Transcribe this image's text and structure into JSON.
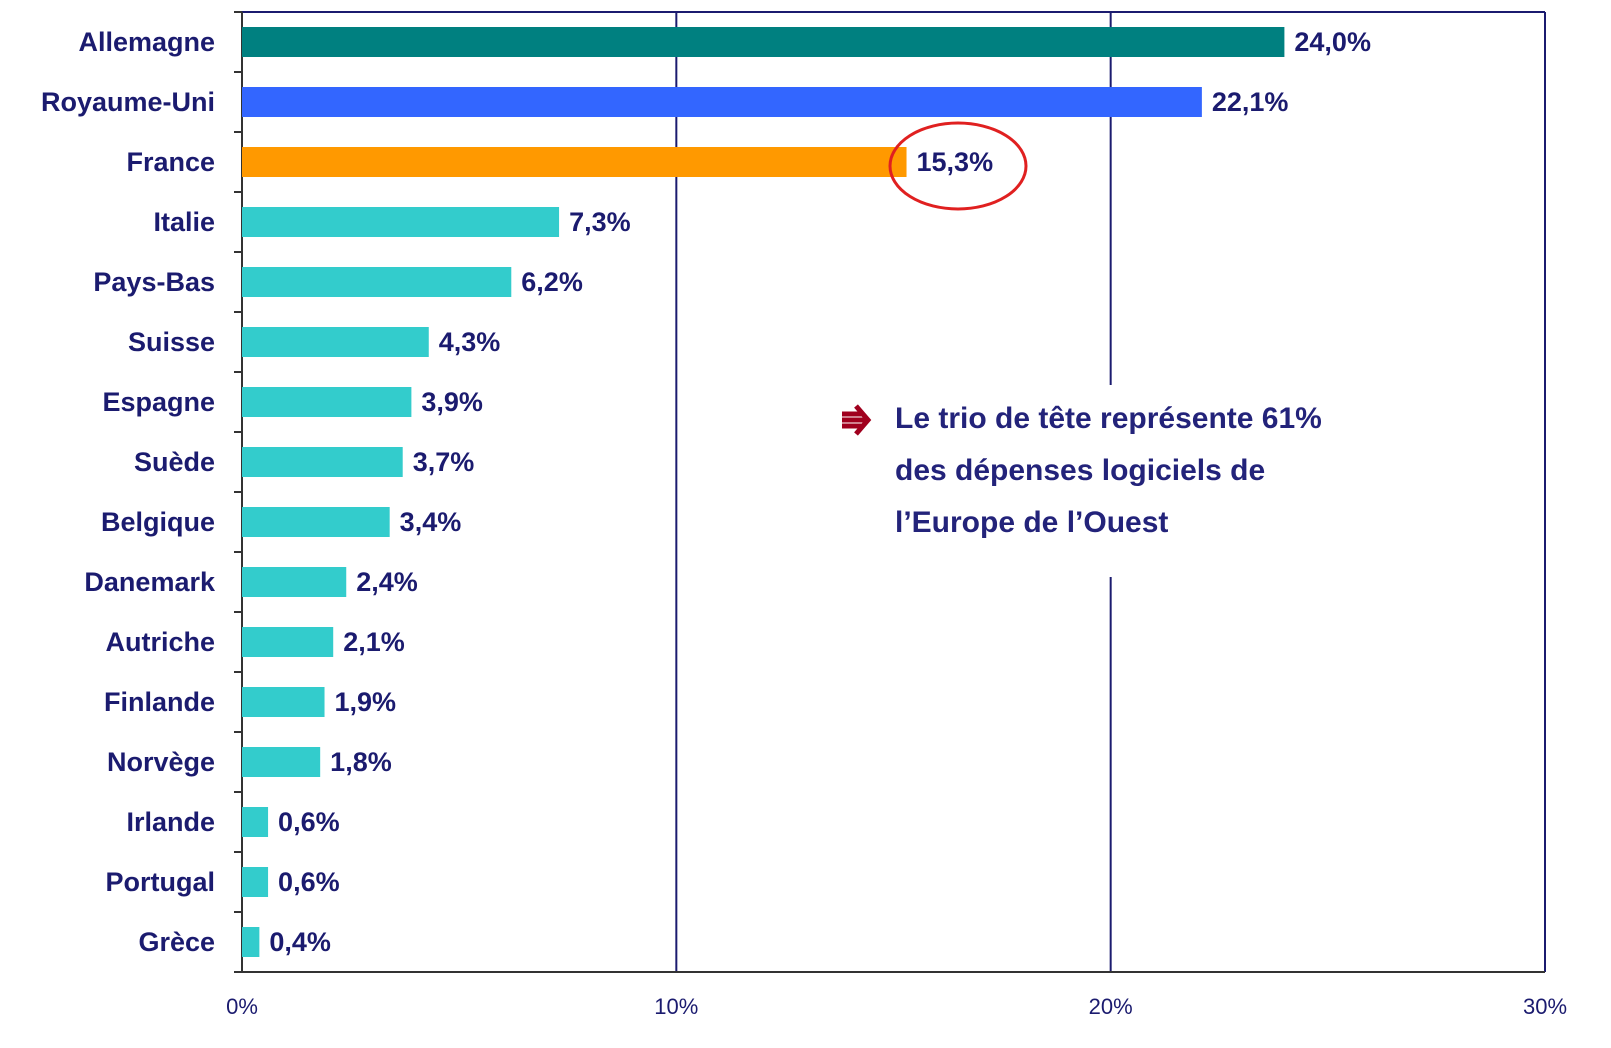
{
  "chart_data": {
    "type": "bar",
    "orientation": "horizontal",
    "categories": [
      "Allemagne",
      "Royaume-Uni",
      "France",
      "Italie",
      "Pays-Bas",
      "Suisse",
      "Espagne",
      "Suède",
      "Belgique",
      "Danemark",
      "Autriche",
      "Finlande",
      "Norvège",
      "Irlande",
      "Portugal",
      "Grèce"
    ],
    "values": [
      24.0,
      22.1,
      15.3,
      7.3,
      6.2,
      4.3,
      3.9,
      3.7,
      3.4,
      2.4,
      2.1,
      1.9,
      1.8,
      0.6,
      0.6,
      0.4
    ],
    "value_labels": [
      "24,0%",
      "22,1%",
      "15,3%",
      "7,3%",
      "6,2%",
      "4,3%",
      "3,9%",
      "3,7%",
      "3,4%",
      "2,4%",
      "2,1%",
      "1,9%",
      "1,8%",
      "0,6%",
      "0,6%",
      "0,4%"
    ],
    "colors": [
      "#008080",
      "#3366ff",
      "#ff9900",
      "#33cccc",
      "#33cccc",
      "#33cccc",
      "#33cccc",
      "#33cccc",
      "#33cccc",
      "#33cccc",
      "#33cccc",
      "#33cccc",
      "#33cccc",
      "#33cccc",
      "#33cccc",
      "#33cccc"
    ],
    "xlim": [
      0,
      30
    ],
    "xticks": [
      {
        "value": 0,
        "label": "0%"
      },
      {
        "value": 10,
        "label": "10%"
      },
      {
        "value": 20,
        "label": "20%"
      },
      {
        "value": 30,
        "label": "30%"
      }
    ],
    "grid": true,
    "annotation": [
      "Le trio de tête représente 61%",
      "des dépenses logiciels de",
      "l’Europe de l’Ouest"
    ]
  }
}
